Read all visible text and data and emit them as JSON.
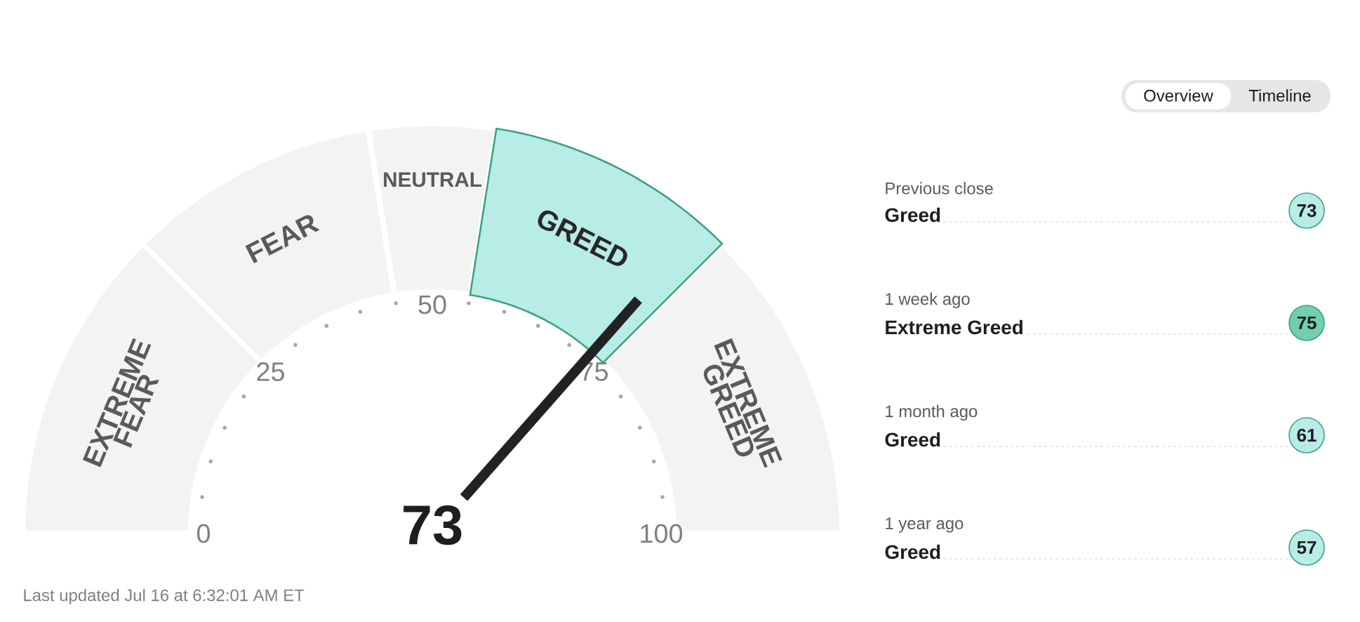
{
  "chart_data": [
    {
      "type": "donut",
      "categories": [
        "EXTREME FEAR",
        "FEAR",
        "NEUTRAL",
        "GREED",
        "EXTREME GREED"
      ],
      "values": [
        25,
        20,
        10,
        20,
        25
      ],
      "colors": [
        "#f3f3f3",
        "#f3f3f3",
        "#f3f3f3",
        "#b8ece6",
        "#f3f3f3"
      ],
      "needle": "GREED",
      "annotations": [
        "73",
        "Last updated Jul 16 at 6:32:01 AM ET",
        "Overview",
        "Timeline",
        "0",
        "25",
        "50",
        "75",
        "100"
      ]
    },
    {
      "type": "other",
      "categories": [
        "Previous close",
        "1 week ago",
        "1 month ago",
        "1 year ago"
      ],
      "values": [
        73,
        75,
        61,
        57
      ],
      "colors": [
        "#b8ece6",
        "#6fcfae",
        "#b8ece6",
        "#b8ece6"
      ],
      "data_labels": true,
      "annotations": [
        "Greed",
        "Extreme Greed",
        "Greed",
        "Greed"
      ]
    }
  ]
}
